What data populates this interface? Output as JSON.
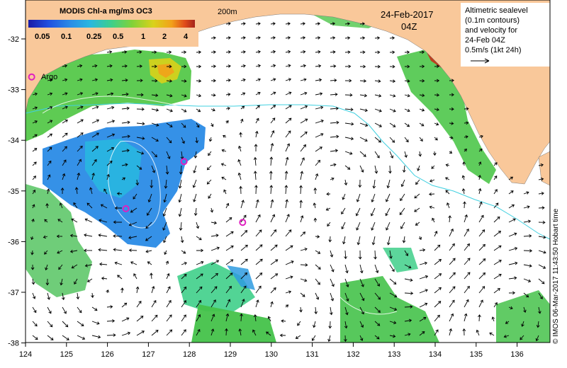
{
  "legend": {
    "title": "MODIS Chl-a mg/m3 OC3",
    "ticks": [
      "0.05",
      "0.1",
      "0.25",
      "0.5",
      "1",
      "2",
      "4"
    ],
    "colors": [
      "#1a1aa6",
      "#1f4fe0",
      "#2a8be6",
      "#28b7e0",
      "#3fcf8a",
      "#7fd23a",
      "#d9d21a",
      "#f2a11a",
      "#e04a1a",
      "#a3231b"
    ]
  },
  "labels": {
    "isobath": "200m",
    "date": "24-Feb-2017",
    "time": "04Z",
    "argo": "Argo",
    "credit": "© IMOS 06-Mar-2017 11:43:50 Hobart time"
  },
  "info_box": {
    "lines": [
      "Altimetric sealevel",
      "(0.1m contours)",
      "and velocity for",
      "24-Feb 04Z",
      "0.5m/s (1kt 24h)"
    ]
  },
  "axes": {
    "x_ticks": [
      "124",
      "125",
      "126",
      "127",
      "128",
      "129",
      "130",
      "131",
      "132",
      "133",
      "134",
      "135",
      "136"
    ],
    "y_ticks": [
      "-32",
      "-33",
      "-34",
      "-35",
      "-36",
      "-37",
      "-38"
    ]
  },
  "argo_floats": [
    {
      "lon": 124.15,
      "lat": -32.75
    },
    {
      "lon": 127.87,
      "lat": -34.42
    },
    {
      "lon": 126.45,
      "lat": -35.35
    },
    {
      "lon": 129.3,
      "lat": -35.62
    }
  ],
  "colors": {
    "land": "#f9c89a",
    "ocean": "#ffffff",
    "isobath": "#40d0e0",
    "argo": "#e020c0",
    "arrow": "#000000"
  }
}
